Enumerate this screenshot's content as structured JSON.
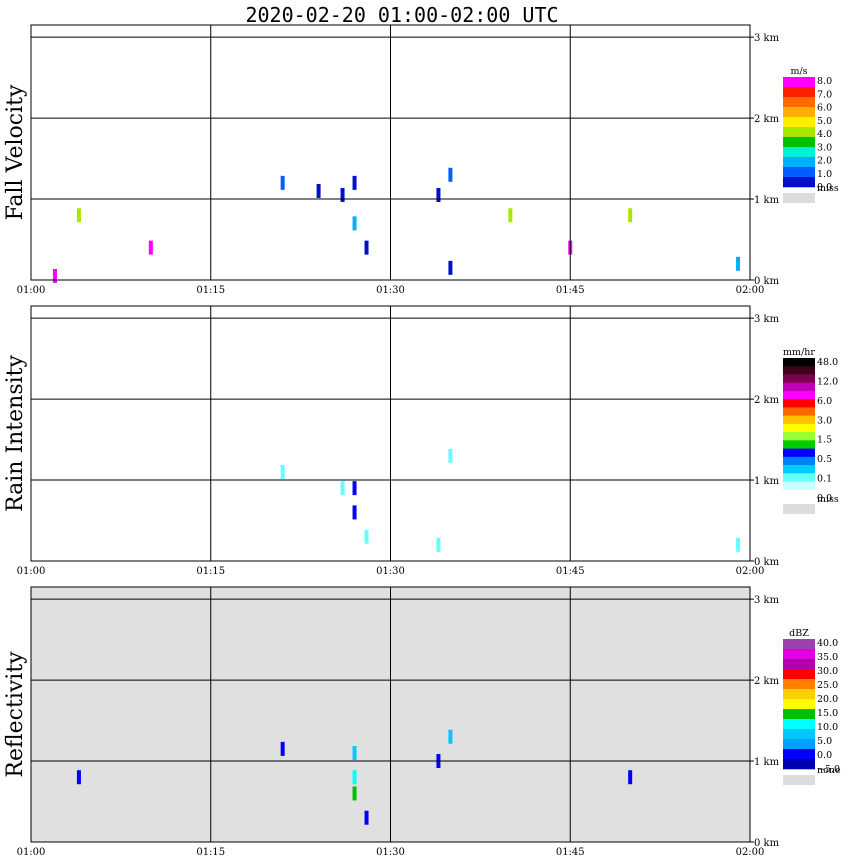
{
  "title": "2020-02-20   01:00-02:00 UTC",
  "time_ticks": [
    "01:00",
    "01:15",
    "01:30",
    "01:45",
    "02:00"
  ],
  "height_ticks": [
    "3 km",
    "2 km",
    "1 km",
    "0 km"
  ],
  "panels": [
    {
      "id": "fall-velocity",
      "ylabel": "Fall Velocity",
      "background": "#ffffff",
      "legend": {
        "unit": "m/s",
        "colors": [
          "#ff00ff",
          "#ff2000",
          "#ff6a00",
          "#ffb000",
          "#ffee00",
          "#a8e800",
          "#00c000",
          "#00f0d8",
          "#00b0ff",
          "#0060ff",
          "#0010c8"
        ],
        "labels": [
          "8.0",
          "7.0",
          "6.0",
          "5.0",
          "4.0",
          "3.0",
          "2.0",
          "1.0",
          "0.0"
        ],
        "missing_label": "miss"
      }
    },
    {
      "id": "rain-intensity",
      "ylabel": "Rain Intensity",
      "background": "#ffffff",
      "legend": {
        "unit": "mm/hr",
        "colors": [
          "#000000",
          "#400018",
          "#800050",
          "#c000b8",
          "#ff00ff",
          "#ff0000",
          "#ff6600",
          "#ffc000",
          "#ffff00",
          "#99ff33",
          "#00cc00",
          "#0000ff",
          "#0080ff",
          "#00ccff",
          "#66ffff",
          "#ccffff",
          "#ffffff"
        ],
        "labels": [
          "48.0",
          "12.0",
          "6.0",
          "3.0",
          "1.5",
          "0.5",
          "0.1",
          "0.0"
        ],
        "missing_label": "miss"
      }
    },
    {
      "id": "reflectivity",
      "ylabel": "Reflectivity",
      "background": "#e0e0e0",
      "legend": {
        "unit": "dBZ",
        "colors": [
          "#a040b0",
          "#e000e0",
          "#b000b0",
          "#ff0000",
          "#ff8000",
          "#ffd000",
          "#ffff00",
          "#00c000",
          "#00ffff",
          "#00c8ff",
          "#00a0ff",
          "#0000ff",
          "#0000b0"
        ],
        "labels": [
          "40.0",
          "35.0",
          "30.0",
          "25.0",
          "20.0",
          "15.0",
          "10.0",
          "5.0",
          "0.0",
          "−5.0"
        ],
        "missing_label": "none"
      }
    }
  ],
  "chart_data": [
    {
      "type": "heatmap",
      "title": "2020-02-20   01:00-02:00 UTC",
      "ylabel": "Fall Velocity",
      "x_range": [
        "01:00",
        "02:00"
      ],
      "y_range_km": [
        0,
        3.15
      ],
      "unit": "m/s",
      "cells": [
        {
          "time": "01:02",
          "height_km": 0.05,
          "value": 8.0
        },
        {
          "time": "01:21",
          "height_km": 1.2,
          "value": 1.0
        },
        {
          "time": "01:24",
          "height_km": 1.1,
          "value": 0.5
        },
        {
          "time": "01:26",
          "height_km": 1.05,
          "value": 0.5
        },
        {
          "time": "01:27",
          "height_km": 1.2,
          "value": 0.0
        },
        {
          "time": "01:27",
          "height_km": 0.7,
          "value": 2.0
        },
        {
          "time": "01:28",
          "height_km": 0.4,
          "value": 0.5
        },
        {
          "time": "01:34",
          "height_km": 1.05,
          "value": 0.5
        },
        {
          "time": "01:35",
          "height_km": 1.3,
          "value": 1.5
        },
        {
          "time": "01:35",
          "height_km": 0.15,
          "value": 0.0
        },
        {
          "time": "01:04",
          "height_km": 0.8,
          "value": 4.0
        },
        {
          "time": "01:40",
          "height_km": 0.8,
          "value": 4.0
        },
        {
          "time": "01:50",
          "height_km": 0.8,
          "value": 4.0
        },
        {
          "time": "01:10",
          "height_km": 0.4,
          "value": 8.0
        },
        {
          "time": "01:45",
          "height_km": 0.4,
          "value": 8.0
        },
        {
          "time": "01:59",
          "height_km": 0.2,
          "value": 2.0
        }
      ]
    },
    {
      "type": "heatmap",
      "title": "",
      "ylabel": "Rain Intensity",
      "x_range": [
        "01:00",
        "02:00"
      ],
      "y_range_km": [
        0,
        3.15
      ],
      "unit": "mm/hr",
      "cells": [
        {
          "time": "01:21",
          "height_km": 1.1,
          "value": 0.1
        },
        {
          "time": "01:26",
          "height_km": 0.9,
          "value": 0.1
        },
        {
          "time": "01:27",
          "height_km": 0.9,
          "value": 0.5
        },
        {
          "time": "01:27",
          "height_km": 0.6,
          "value": 0.5
        },
        {
          "time": "01:28",
          "height_km": 0.3,
          "value": 0.1
        },
        {
          "time": "01:35",
          "height_km": 1.3,
          "value": 0.1
        },
        {
          "time": "01:34",
          "height_km": 0.2,
          "value": 0.1
        },
        {
          "time": "01:04",
          "height_km": 0.8,
          "value": 0.0
        },
        {
          "time": "01:50",
          "height_km": 0.8,
          "value": 0.0
        },
        {
          "time": "01:59",
          "height_km": 0.2,
          "value": 0.1
        }
      ]
    },
    {
      "type": "heatmap",
      "title": "",
      "ylabel": "Reflectivity",
      "x_range": [
        "01:00",
        "02:00"
      ],
      "y_range_km": [
        0,
        3.15
      ],
      "unit": "dBZ",
      "cells": [
        {
          "time": "01:21",
          "height_km": 1.15,
          "value": 0.0
        },
        {
          "time": "01:27",
          "height_km": 1.1,
          "value": 5.0
        },
        {
          "time": "01:27",
          "height_km": 0.8,
          "value": 10.0
        },
        {
          "time": "01:27",
          "height_km": 0.6,
          "value": 15.0
        },
        {
          "time": "01:28",
          "height_km": 0.3,
          "value": 0.0
        },
        {
          "time": "01:35",
          "height_km": 1.3,
          "value": 5.0
        },
        {
          "time": "01:34",
          "height_km": 1.0,
          "value": 0.0
        },
        {
          "time": "01:04",
          "height_km": 0.8,
          "value": 0.0
        },
        {
          "time": "01:50",
          "height_km": 0.8,
          "value": 0.0
        }
      ]
    }
  ]
}
